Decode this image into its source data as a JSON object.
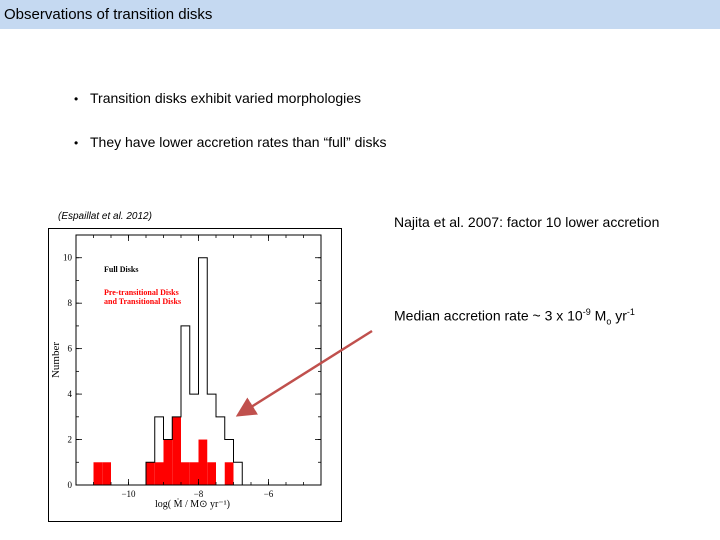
{
  "slide": {
    "title": "Observations of transition disks",
    "bullets": [
      "Transition disks exhibit varied morphologies",
      "They have lower accretion rates than “full” disks"
    ],
    "citation": "(Espaillat et al. 2012)",
    "note1": "Najita et al. 2007: factor 10 lower accretion",
    "note2": {
      "prefix": "Median accretion rate ~ 3 x 10",
      "exp": "-9",
      "mid": " M",
      "sub": "o",
      "unit": " yr",
      "unit_exp": "-1"
    },
    "colors": {
      "title_bar": "#c5d9f1",
      "transition_fill": "#ff0000",
      "arrow": "#c0504d"
    }
  },
  "chart_data": {
    "type": "bar",
    "xlabel": "log( Ṁ / M⊙ yr⁻¹)",
    "ylabel": "Number",
    "xlim": [
      -11.5,
      -4.5
    ],
    "ylim": [
      0,
      11
    ],
    "xticks": [
      -10,
      -8,
      -6
    ],
    "yticks": [
      0,
      2,
      4,
      6,
      8,
      10
    ],
    "bin_width": 0.25,
    "legend_position": "top-left",
    "series": [
      {
        "name": "Full Disks",
        "style": "outline",
        "bins": [
          {
            "x": -9.5,
            "y": 1
          },
          {
            "x": -9.25,
            "y": 3
          },
          {
            "x": -9.0,
            "y": 2
          },
          {
            "x": -8.75,
            "y": 3
          },
          {
            "x": -8.5,
            "y": 7
          },
          {
            "x": -8.25,
            "y": 4
          },
          {
            "x": -8.0,
            "y": 10
          },
          {
            "x": -7.75,
            "y": 4
          },
          {
            "x": -7.5,
            "y": 3
          },
          {
            "x": -7.25,
            "y": 2
          },
          {
            "x": -7.0,
            "y": 1
          }
        ]
      },
      {
        "name": "Pre-transitional Disks\nand Transitional Disks",
        "style": "filled",
        "bins": [
          {
            "x": -11.0,
            "y": 1
          },
          {
            "x": -10.75,
            "y": 1
          },
          {
            "x": -9.5,
            "y": 1
          },
          {
            "x": -9.25,
            "y": 1
          },
          {
            "x": -9.0,
            "y": 2
          },
          {
            "x": -8.75,
            "y": 3
          },
          {
            "x": -8.5,
            "y": 1
          },
          {
            "x": -8.25,
            "y": 1
          },
          {
            "x": -8.0,
            "y": 2
          },
          {
            "x": -7.75,
            "y": 1
          },
          {
            "x": -7.25,
            "y": 1
          }
        ]
      }
    ]
  }
}
